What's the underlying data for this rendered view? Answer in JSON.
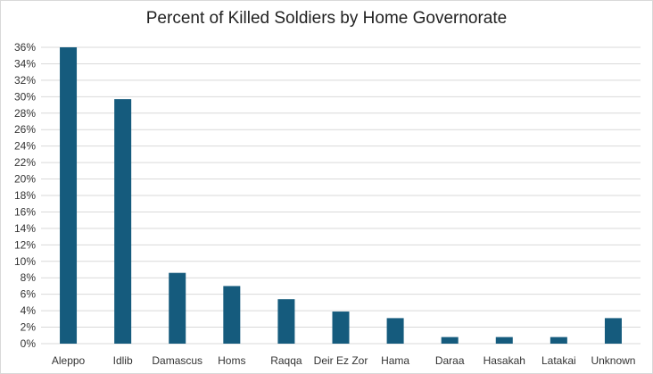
{
  "chart_data": {
    "type": "bar",
    "title": "Percent of Killed Soldiers by Home Governorate",
    "xlabel": "",
    "ylabel": "",
    "categories": [
      "Aleppo",
      "Idlib",
      "Damascus",
      "Homs",
      "Raqqa",
      "Deir Ez Zor",
      "Hama",
      "Daraa",
      "Hasakah",
      "Latakai",
      "Unknown"
    ],
    "values": [
      36,
      29.7,
      8.6,
      7.0,
      5.4,
      3.9,
      3.1,
      0.8,
      0.8,
      0.8,
      3.1
    ],
    "ylim": [
      0,
      36
    ],
    "ytick_step": 2,
    "ytick_format": "percent",
    "grid": true,
    "legend": "none",
    "bar_color": "#155b7d",
    "grid_color": "#d9d9d9"
  }
}
